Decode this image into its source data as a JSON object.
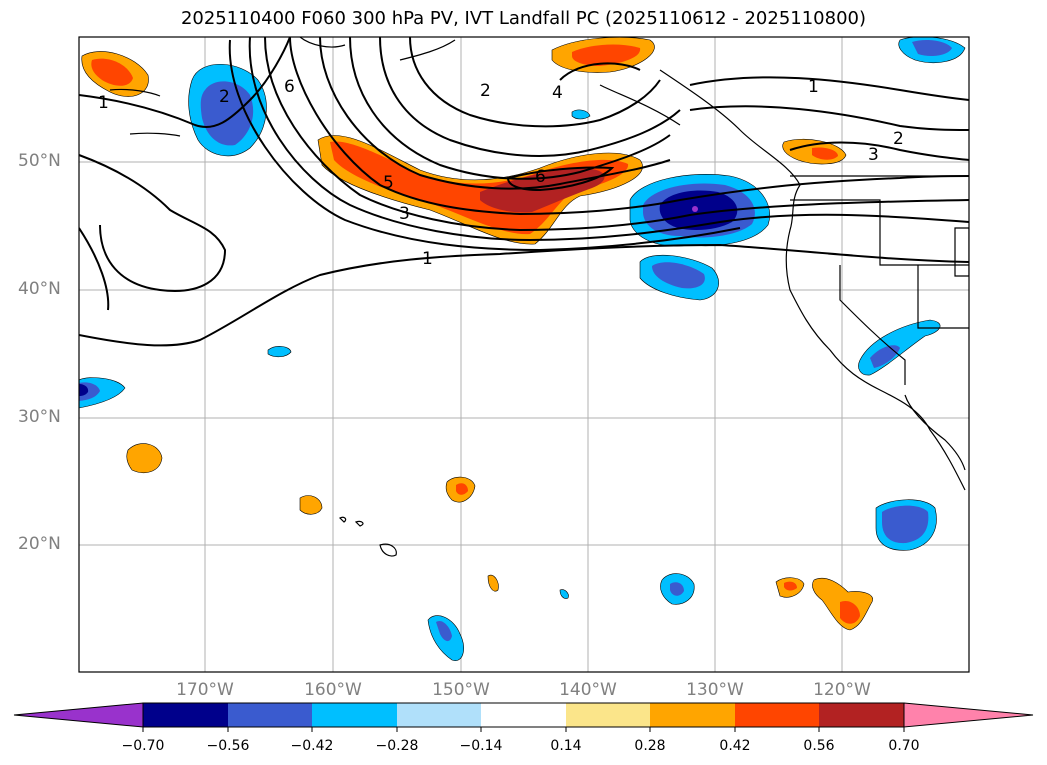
{
  "title": "2025110400 F060 300 hPa PV, IVT Landfall PC (2025110612 - 2025110800)",
  "lat_labels": [
    "50°N",
    "40°N",
    "30°N",
    "20°N"
  ],
  "lon_labels": [
    "170°W",
    "160°W",
    "150°W",
    "140°W",
    "130°W",
    "120°W"
  ],
  "contour_labels": [
    "1",
    "2",
    "6",
    "2",
    "4",
    "1",
    "2",
    "3",
    "5",
    "6",
    "3",
    "1"
  ],
  "colorbar": {
    "ticks": [
      "−0.70",
      "−0.56",
      "−0.42",
      "−0.28",
      "−0.14",
      "0.14",
      "0.28",
      "0.42",
      "0.56",
      "0.70"
    ],
    "colors": [
      "#9932cc",
      "#00008b",
      "#3a5bcf",
      "#00bfff",
      "#b0e0fa",
      "#ffffff",
      "#fbe58a",
      "#ffa500",
      "#ff4500",
      "#b22222",
      "#ff82ab"
    ]
  },
  "colors": {
    "grid": "#b0b0b0",
    "coast": "#000000",
    "contour": "#000000"
  }
}
